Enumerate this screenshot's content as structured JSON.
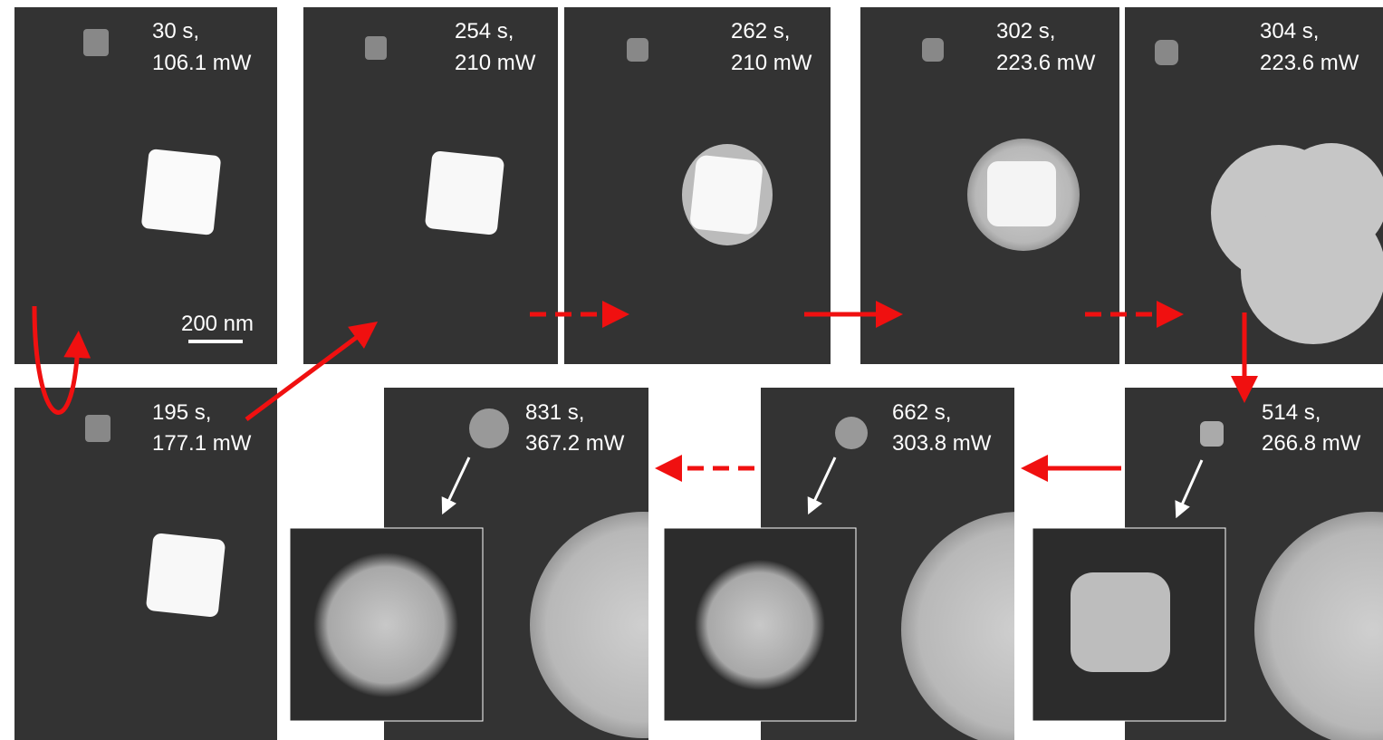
{
  "panels": [
    {
      "time": "30 s,",
      "power": "106.1 mW"
    },
    {
      "time": "254 s,",
      "power": "210 mW"
    },
    {
      "time": "262 s,",
      "power": "210 mW"
    },
    {
      "time": "302 s,",
      "power": "223.6 mW"
    },
    {
      "time": "304 s,",
      "power": "223.6 mW"
    },
    {
      "time": "195 s,",
      "power": "177.1 mW"
    },
    {
      "time": "831 s,",
      "power": "367.2 mW"
    },
    {
      "time": "662 s,",
      "power": "303.8 mW"
    },
    {
      "time": "514 s,",
      "power": "266.8 mW"
    }
  ],
  "scale_bar": "200 nm"
}
